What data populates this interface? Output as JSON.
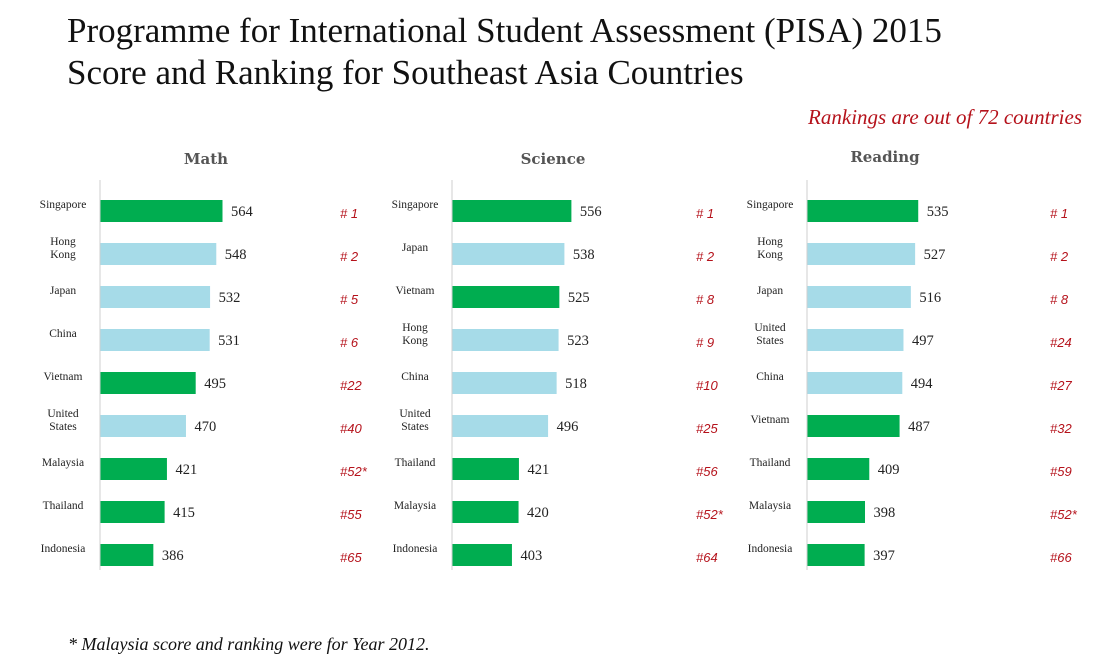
{
  "title_line1": "Programme for International Student Assessment (PISA) 2015",
  "title_line2": "Score and Ranking for Southeast Asia Countries",
  "note": "Rankings are out of 72 countries",
  "footnote": "* Malaysia score and ranking were for Year 2012.",
  "colors": {
    "southeast_asia": "#00ad50",
    "other": "#a6dbe8",
    "rank": "#b5121b"
  },
  "chart_data": [
    {
      "type": "bar",
      "orientation": "horizontal",
      "title": "Math",
      "categories": [
        "Singapore",
        "Hong\nKong",
        "Japan",
        "China",
        "Vietnam",
        "United\nStates",
        "Malaysia",
        "Thailand",
        "Indonesia"
      ],
      "values": [
        564,
        548,
        532,
        531,
        495,
        470,
        421,
        415,
        386
      ],
      "ranks": [
        "# 1",
        "# 2",
        "# 5",
        "# 6",
        "#22",
        "#40",
        "#52*",
        "#55",
        "#65"
      ],
      "highlight": [
        true,
        false,
        false,
        false,
        true,
        false,
        true,
        true,
        true
      ],
      "xlim": [
        250,
        600
      ],
      "grid": false
    },
    {
      "type": "bar",
      "orientation": "horizontal",
      "title": "Science",
      "categories": [
        "Singapore",
        "Japan",
        "Vietnam",
        "Hong\nKong",
        "China",
        "United\nStates",
        "Thailand",
        "Malaysia",
        "Indonesia"
      ],
      "values": [
        556,
        538,
        525,
        523,
        518,
        496,
        421,
        420,
        403
      ],
      "ranks": [
        "# 1",
        "# 2",
        "# 8",
        "# 9",
        "#10",
        "#25",
        "#56",
        "#52*",
        "#64"
      ],
      "highlight": [
        true,
        false,
        true,
        false,
        false,
        false,
        true,
        true,
        true
      ],
      "xlim": [
        250,
        600
      ],
      "grid": false
    },
    {
      "type": "bar",
      "orientation": "horizontal",
      "title": "Reading",
      "categories": [
        "Singapore",
        "Hong\nKong",
        "Japan",
        "United\nStates",
        "China",
        "Vietnam",
        "Thailand",
        "Malaysia",
        "Indonesia"
      ],
      "values": [
        535,
        527,
        516,
        497,
        494,
        487,
        409,
        398,
        397
      ],
      "ranks": [
        "# 1",
        "# 2",
        "# 8",
        "#24",
        "#27",
        "#32",
        "#59",
        "#52*",
        "#66"
      ],
      "highlight": [
        true,
        false,
        false,
        false,
        false,
        true,
        true,
        true,
        true
      ],
      "xlim": [
        250,
        600
      ],
      "grid": false
    }
  ]
}
